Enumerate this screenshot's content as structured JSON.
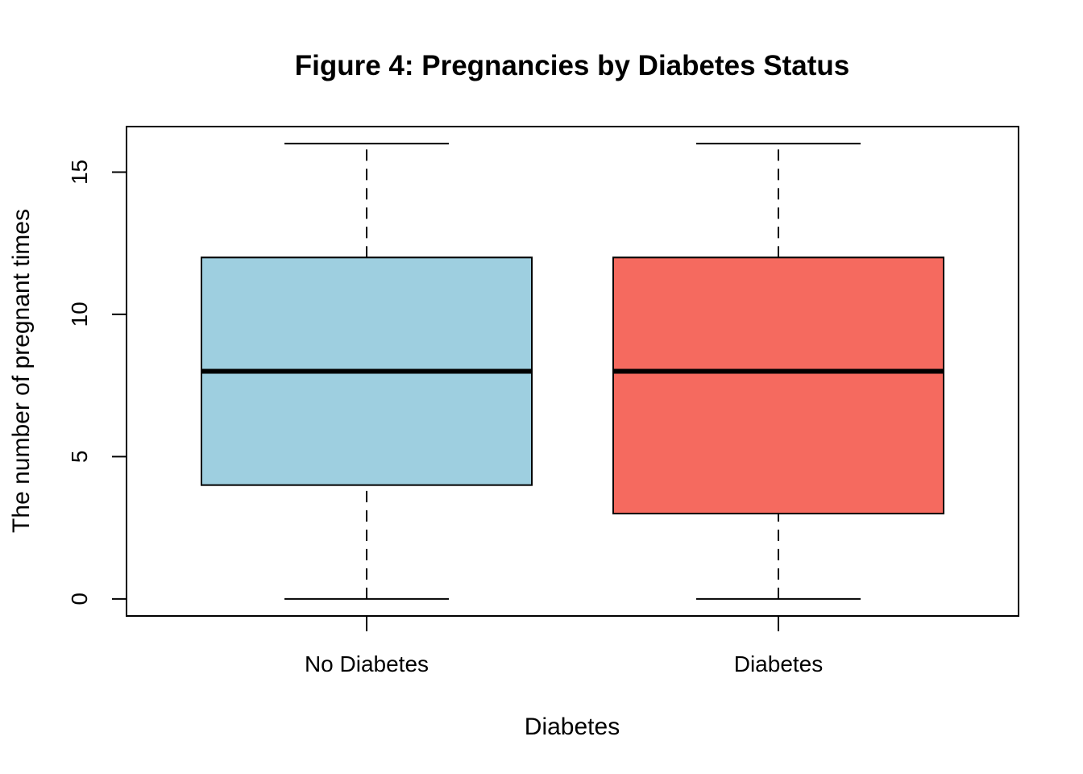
{
  "chart_data": {
    "type": "boxplot",
    "title": "Figure 4: Pregnancies by Diabetes Status",
    "xlabel": "Diabetes",
    "ylabel": "The number of pregnant times",
    "ylim": [
      -0.6,
      16.6
    ],
    "yticks": [
      "0",
      "5",
      "10",
      "15"
    ],
    "grid": false,
    "categories": [
      "No Diabetes",
      "Diabetes"
    ],
    "boxes": [
      {
        "name": "No Diabetes",
        "whisker_low": 0,
        "q1": 4,
        "median": 8,
        "q3": 12,
        "whisker_high": 16,
        "color": "#9ECFE0"
      },
      {
        "name": "Diabetes",
        "whisker_low": 0,
        "q1": 3,
        "median": 8,
        "q3": 12,
        "whisker_high": 16,
        "color": "#F56A5F"
      }
    ]
  }
}
